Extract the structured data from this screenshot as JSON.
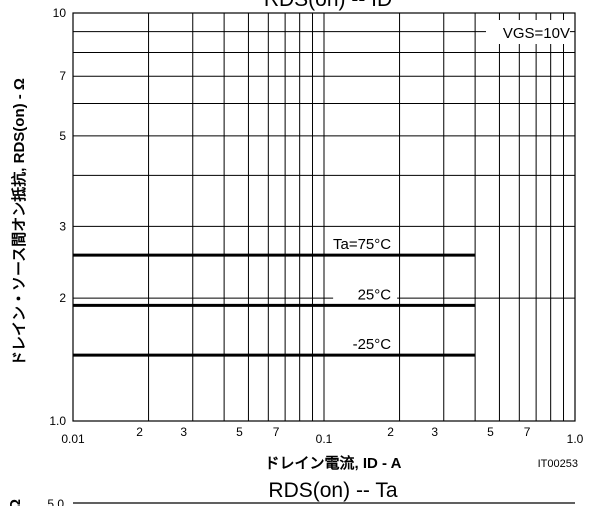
{
  "chart_data": [
    {
      "type": "line",
      "title": "RDS(on) -- ID",
      "xlabel": "ドレイン電流, ID - A",
      "ylabel": "ドレイン・ソース間オン抵抗, RDS(on) - Ω",
      "x_scale": "log",
      "y_scale": "log",
      "xlim": [
        0.01,
        1.0
      ],
      "ylim": [
        1.0,
        10
      ],
      "x_ticks": [
        {
          "value": 0.01,
          "label": "0.01"
        },
        {
          "value": 0.02,
          "label": "2"
        },
        {
          "value": 0.03,
          "label": "3"
        },
        {
          "value": 0.05,
          "label": "5"
        },
        {
          "value": 0.07,
          "label": "7"
        },
        {
          "value": 0.1,
          "label": "0.1"
        },
        {
          "value": 0.2,
          "label": "2"
        },
        {
          "value": 0.3,
          "label": "3"
        },
        {
          "value": 0.5,
          "label": "5"
        },
        {
          "value": 0.7,
          "label": "7"
        },
        {
          "value": 1.0,
          "label": "1.0"
        }
      ],
      "y_ticks": [
        {
          "value": 1.0,
          "label": "1.0"
        },
        {
          "value": 2,
          "label": "2"
        },
        {
          "value": 3,
          "label": "3"
        },
        {
          "value": 5,
          "label": "5"
        },
        {
          "value": 7,
          "label": "7"
        },
        {
          "value": 10,
          "label": "10"
        }
      ],
      "x_gridlines": [
        0.02,
        0.03,
        0.04,
        0.05,
        0.06,
        0.07,
        0.08,
        0.09,
        0.1,
        0.2,
        0.3,
        0.4,
        0.5,
        0.6,
        0.7,
        0.8,
        0.9
      ],
      "y_gridlines": [
        2,
        3,
        4,
        5,
        6,
        7,
        8,
        9
      ],
      "grid": true,
      "condition": "VGS=10V",
      "series": [
        {
          "name": "Ta=75°C",
          "x": [
            0.01,
            0.4
          ],
          "y": [
            2.55,
            2.55
          ]
        },
        {
          "name": "25°C",
          "x": [
            0.01,
            0.4
          ],
          "y": [
            1.92,
            1.92
          ]
        },
        {
          "name": "-25°C",
          "x": [
            0.01,
            0.4
          ],
          "y": [
            1.45,
            1.45
          ]
        }
      ],
      "figure_code": "IT00253"
    },
    {
      "type": "line",
      "title": "RDS(on) -- Ta",
      "ylabel": "Ω",
      "y_top_tick": "5.0"
    }
  ],
  "colors": {
    "background": "#ffffff",
    "ink": "#000000"
  }
}
